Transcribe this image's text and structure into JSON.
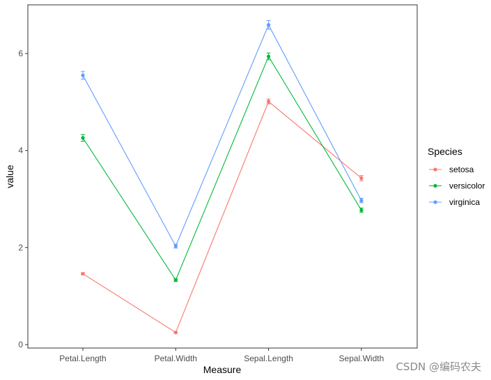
{
  "chart_data": {
    "type": "line",
    "xlabel": "Measure",
    "ylabel": "value",
    "categories": [
      "Petal.Length",
      "Petal.Width",
      "Sepal.Length",
      "Sepal.Width"
    ],
    "ylim": [
      -0.1,
      7.0
    ],
    "yticks": [
      0,
      2,
      4,
      6
    ],
    "grid": false,
    "legend": {
      "title": "Species",
      "placement": "right"
    },
    "series": [
      {
        "name": "setosa",
        "color": "#F8766D",
        "values": [
          1.46,
          0.25,
          5.01,
          3.43
        ],
        "errors": [
          0.02,
          0.015,
          0.05,
          0.055
        ]
      },
      {
        "name": "versicolor",
        "color": "#00BA38",
        "values": [
          4.26,
          1.33,
          5.94,
          2.77
        ],
        "errors": [
          0.07,
          0.03,
          0.07,
          0.045
        ]
      },
      {
        "name": "virginica",
        "color": "#619CFF",
        "values": [
          5.55,
          2.03,
          6.59,
          2.97
        ],
        "errors": [
          0.08,
          0.04,
          0.09,
          0.045
        ]
      }
    ]
  },
  "watermark": "CSDN @编码农夫"
}
